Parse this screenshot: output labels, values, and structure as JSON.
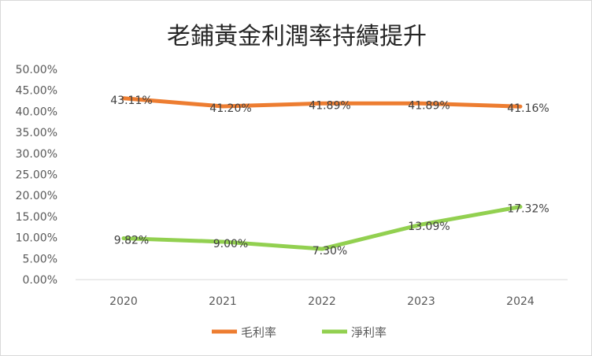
{
  "chart_data": {
    "type": "line",
    "title": "老鋪黃金利潤率持續提升",
    "categories": [
      "2020",
      "2021",
      "2022",
      "2023",
      "2024"
    ],
    "series": [
      {
        "name": "毛利率",
        "color": "#ED7D31",
        "values": [
          43.11,
          41.2,
          41.89,
          41.89,
          41.16
        ],
        "labels": [
          "43.11%",
          "41.20%",
          "41.89%",
          "41.89%",
          "41.16%"
        ]
      },
      {
        "name": "淨利率",
        "color": "#92D050",
        "values": [
          9.82,
          9.0,
          7.3,
          13.09,
          17.32
        ],
        "labels": [
          "9.82%",
          "9.00%",
          "7.30%",
          "13.09%",
          "17.32%"
        ]
      }
    ],
    "ylim": [
      0,
      50
    ],
    "yticks": [
      "0.00%",
      "5.00%",
      "10.00%",
      "15.00%",
      "20.00%",
      "25.00%",
      "30.00%",
      "35.00%",
      "40.00%",
      "45.00%",
      "50.00%"
    ],
    "grid": false,
    "legend": "bottom"
  }
}
